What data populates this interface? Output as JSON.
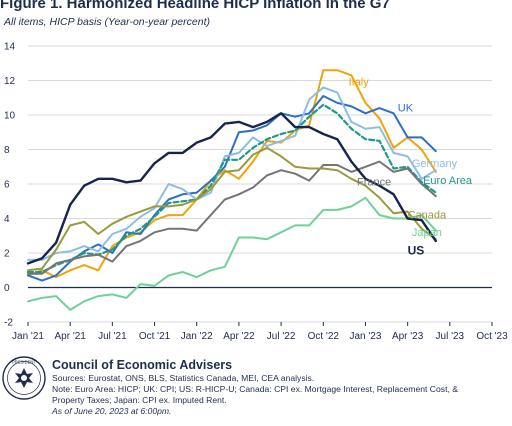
{
  "chart_data": {
    "type": "line",
    "title": "Figure 1. Harmonized Headline HICP Inflation in the G7",
    "subtitle": "All items, HICP basis (Year-on-year percent)",
    "xlabel": "",
    "ylabel": "",
    "ylim": [
      -2,
      14
    ],
    "yticks": [
      -2,
      0,
      2,
      4,
      6,
      8,
      10,
      12,
      14
    ],
    "xlim": [
      0,
      33
    ],
    "xticks": [
      {
        "pos": 0,
        "label": "Jan '21"
      },
      {
        "pos": 3,
        "label": "Apr '21"
      },
      {
        "pos": 6,
        "label": "Jul '21"
      },
      {
        "pos": 9,
        "label": "Oct '21"
      },
      {
        "pos": 12,
        "label": "Jan '22"
      },
      {
        "pos": 15,
        "label": "Apr '22"
      },
      {
        "pos": 18,
        "label": "Jul '22"
      },
      {
        "pos": 21,
        "label": "Oct '22"
      },
      {
        "pos": 24,
        "label": "Jan '23"
      },
      {
        "pos": 27,
        "label": "Apr '23"
      },
      {
        "pos": 30,
        "label": "Jul '23"
      },
      {
        "pos": 33,
        "label": "Oct '23"
      }
    ],
    "grid": "horizontal",
    "legend": "inline labels at line ends",
    "series": [
      {
        "name": "Italy",
        "color": "#f0a30a",
        "width": 2,
        "dash": "",
        "label_pos": [
          22.8,
          11.7
        ],
        "values": [
          0.7,
          1.0,
          0.6,
          1.0,
          1.3,
          1.0,
          2.4,
          2.9,
          3.2,
          3.9,
          4.2,
          4.2,
          5.1,
          6.2,
          6.8,
          6.3,
          7.3,
          8.5,
          8.4,
          9.1,
          9.4,
          12.6,
          12.6,
          12.3,
          10.7,
          9.8,
          8.1,
          8.7,
          8.0,
          6.7
        ]
      },
      {
        "name": "UK",
        "color": "#2e6fc6",
        "width": 2,
        "dash": "",
        "label_pos": [
          26.3,
          10.2
        ],
        "values": [
          0.7,
          0.4,
          0.7,
          1.5,
          2.1,
          2.5,
          2.0,
          3.2,
          3.1,
          4.2,
          5.1,
          5.4,
          5.5,
          6.2,
          7.0,
          9.0,
          9.1,
          9.4,
          10.1,
          9.9,
          10.1,
          11.1,
          10.7,
          10.5,
          10.1,
          10.4,
          10.1,
          8.7,
          8.7,
          7.9
        ]
      },
      {
        "name": "Germany",
        "color": "#8dbde6",
        "width": 2,
        "dash": "",
        "label_pos": [
          27.3,
          7.0
        ],
        "values": [
          1.6,
          1.6,
          2.0,
          2.1,
          2.4,
          2.1,
          3.1,
          3.4,
          4.1,
          4.6,
          6.0,
          5.7,
          5.1,
          5.5,
          7.6,
          7.8,
          8.7,
          8.2,
          8.5,
          8.8,
          10.9,
          11.6,
          11.3,
          9.6,
          9.2,
          9.3,
          7.8,
          7.6,
          6.3,
          6.8
        ]
      },
      {
        "name": "Euro Area",
        "color": "#1e9a8a",
        "width": 2.2,
        "dash": "5,3",
        "label_pos": [
          28.1,
          6.0
        ],
        "values": [
          0.9,
          0.9,
          1.3,
          1.6,
          2.0,
          1.9,
          2.2,
          3.0,
          3.4,
          4.1,
          4.9,
          5.0,
          5.1,
          5.9,
          7.4,
          7.4,
          8.1,
          8.6,
          8.9,
          9.1,
          9.9,
          10.6,
          10.1,
          9.2,
          8.6,
          8.5,
          6.9,
          7.0,
          6.1,
          5.5
        ]
      },
      {
        "name": "France",
        "color": "#757575",
        "width": 2,
        "dash": "",
        "label_pos": [
          23.4,
          5.9
        ],
        "values": [
          0.8,
          0.8,
          1.4,
          1.6,
          1.8,
          1.9,
          1.5,
          2.4,
          2.7,
          3.2,
          3.4,
          3.4,
          3.3,
          4.2,
          5.1,
          5.4,
          5.8,
          6.5,
          6.8,
          6.6,
          6.2,
          7.1,
          7.1,
          6.7,
          7.0,
          7.3,
          6.7,
          6.9,
          6.0,
          5.3
        ]
      },
      {
        "name": "Canada",
        "color": "#9a9a3d",
        "width": 2,
        "dash": "",
        "label_pos": [
          27.0,
          4.0
        ],
        "values": [
          1.0,
          1.1,
          2.2,
          3.6,
          3.8,
          3.1,
          3.7,
          4.1,
          4.4,
          4.7,
          4.7,
          4.8,
          5.1,
          5.7,
          6.7,
          6.8,
          7.7,
          8.1,
          7.6,
          7.0,
          6.9,
          6.9,
          6.8,
          6.3,
          5.9,
          5.2,
          4.3,
          4.4,
          3.4,
          2.8
        ]
      },
      {
        "name": "Japan",
        "color": "#6fd19a",
        "width": 2,
        "dash": "",
        "label_pos": [
          27.3,
          3.0
        ],
        "values": [
          -0.8,
          -0.6,
          -0.5,
          -1.3,
          -0.8,
          -0.5,
          -0.4,
          -0.6,
          0.2,
          0.1,
          0.7,
          0.9,
          0.6,
          1.0,
          1.2,
          2.9,
          2.9,
          2.8,
          3.2,
          3.6,
          3.6,
          4.5,
          4.5,
          4.7,
          5.2,
          4.2,
          4.0,
          4.0,
          4.2,
          3.3
        ]
      },
      {
        "name": "US",
        "color": "#17254d",
        "width": 2.4,
        "dash": "",
        "label_pos": [
          27.0,
          1.9
        ],
        "values": [
          1.4,
          1.7,
          2.6,
          4.8,
          5.9,
          6.3,
          6.3,
          6.1,
          6.2,
          7.2,
          7.8,
          7.8,
          8.4,
          8.7,
          9.5,
          9.6,
          9.3,
          9.6,
          10.1,
          9.3,
          9.3,
          8.9,
          8.6,
          7.3,
          6.3,
          5.9,
          5.4,
          4.0,
          3.9,
          2.7
        ]
      }
    ]
  },
  "footer": {
    "org": "Council of Economic Advisers",
    "sources": "Sources: Eurostat, ONS, BLS, Statistics Canada, MEI, CEA analysis.",
    "note_line1": "Note: Euro Area: HICP; UK: CPI; US: R-HICP-U; Canada: CPI ex. Mortgage Interest, Replacement Cost, &",
    "note_line2": "Property Taxes; Japan: CPI ex. Imputed Rent.",
    "as_of": "As of June 20, 2023 at 6:00pm."
  },
  "seal": {
    "label": "PRESIDENT"
  }
}
